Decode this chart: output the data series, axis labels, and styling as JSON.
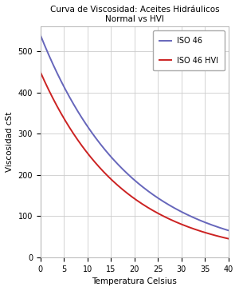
{
  "title_line1": "Curva de Viscosidad: Aceites Hidráulicos",
  "title_line2": "Normal vs HVI",
  "xlabel": "Temperatura Celsius",
  "ylabel": "Viscosidad cSt",
  "x_start": 0,
  "x_end": 40,
  "ylim": [
    0,
    560
  ],
  "yticks": [
    0,
    100,
    200,
    300,
    400,
    500
  ],
  "xticks": [
    0,
    5,
    10,
    15,
    20,
    25,
    30,
    35,
    40
  ],
  "iso46_color": "#6666bb",
  "iso46hvi_color": "#cc2222",
  "iso46_label": "ISO 46",
  "iso46hvi_label": "ISO 46 HVI",
  "background_color": "#ffffff",
  "grid_color": "#cccccc",
  "linewidth": 1.4,
  "figwidth": 3.0,
  "figheight": 3.64,
  "dpi": 100
}
